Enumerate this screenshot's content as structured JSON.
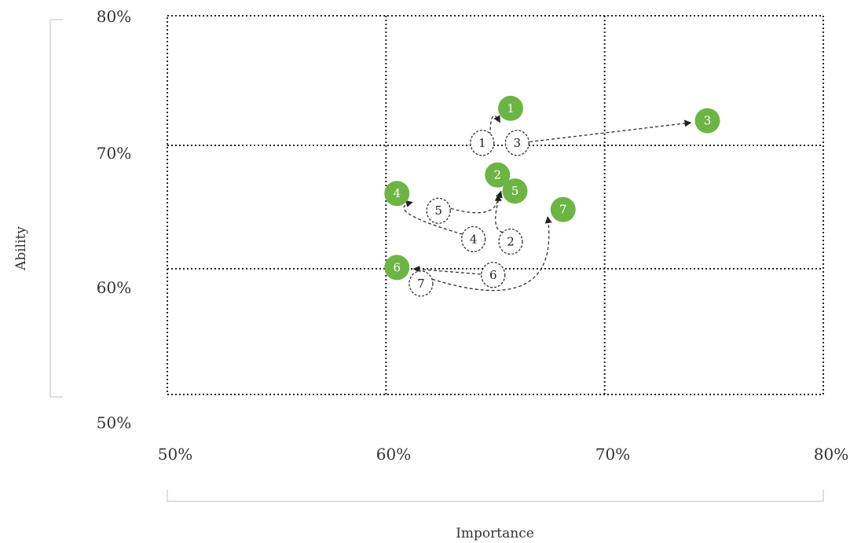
{
  "chart_data": {
    "type": "scatter",
    "title": "",
    "xlabel": "Importance",
    "ylabel": "Ability",
    "xlim": [
      50,
      80
    ],
    "ylim": [
      50,
      80
    ],
    "x_ticks": [
      "50%",
      "60%",
      "70%",
      "80%"
    ],
    "y_ticks": [
      "80%",
      "70%",
      "60%",
      "50%"
    ],
    "grid": true,
    "colors": {
      "current": "#6cb544",
      "previous_stroke": "#333333",
      "arrow": "#333333",
      "grid": "#222222",
      "bracket": "#cccccc"
    },
    "series": [
      {
        "points": [
          {
            "label": "1",
            "x": 64.4,
            "y": 70.2
          },
          {
            "label": "2",
            "x": 65.7,
            "y": 62.2
          },
          {
            "label": "3",
            "x": 66.0,
            "y": 70.2
          },
          {
            "label": "4",
            "x": 64.0,
            "y": 62.4
          },
          {
            "label": "5",
            "x": 62.4,
            "y": 64.7
          },
          {
            "label": "6",
            "x": 64.9,
            "y": 59.5
          },
          {
            "label": "7",
            "x": 61.6,
            "y": 58.8
          }
        ]
      },
      {
        "points": [
          {
            "label": "1",
            "x": 65.7,
            "y": 73.0
          },
          {
            "label": "2",
            "x": 65.1,
            "y": 67.6
          },
          {
            "label": "3",
            "x": 74.7,
            "y": 72.0
          },
          {
            "label": "4",
            "x": 60.5,
            "y": 66.1
          },
          {
            "label": "5",
            "x": 65.9,
            "y": 66.3
          },
          {
            "label": "6",
            "x": 60.5,
            "y": 60.1
          },
          {
            "label": "7",
            "x": 68.1,
            "y": 64.8
          }
        ]
      }
    ]
  }
}
